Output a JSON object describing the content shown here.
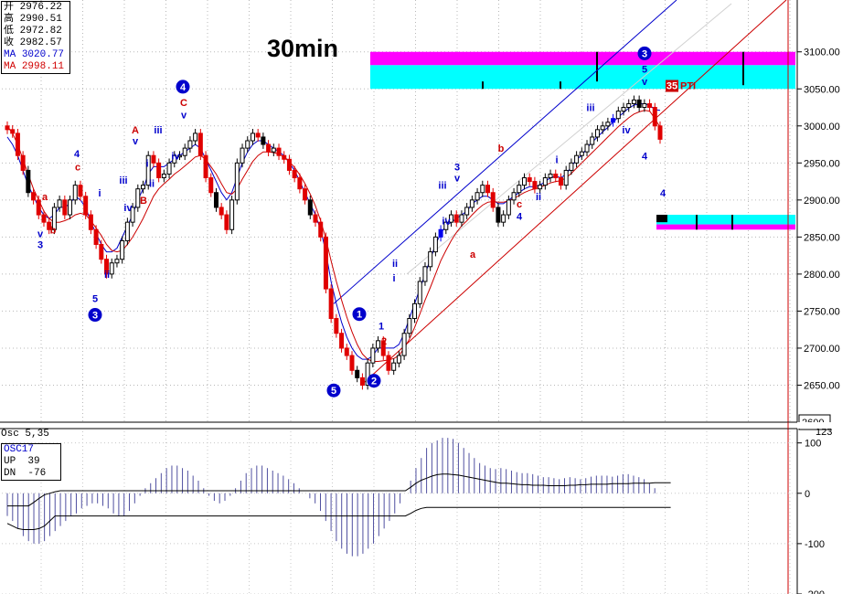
{
  "timeframe": "30min",
  "ohlc": {
    "open_label": "开",
    "open": "2976.22",
    "high_label": "高",
    "high": "2990.51",
    "low_label": "低",
    "low": "2972.82",
    "close_label": "收",
    "close": "2982.57",
    "ma1_label": "MA",
    "ma1": "3020.77",
    "ma2_label": "MA",
    "ma2": "2998.11"
  },
  "oscillator": {
    "header": "Osc 5,35",
    "name": "OSC17",
    "up_label": "UP",
    "up": "39",
    "dn_label": "DN",
    "dn": "-76",
    "current_value": "123"
  },
  "colors": {
    "up_candle": "#ffffff",
    "down_candle": "#e00000",
    "blue_candle": "#0000ee",
    "black_candle": "#000000",
    "ma_fast": "#0000cc",
    "ma_slow": "#cc0000",
    "magenta_zone": "#ff00ff",
    "cyan_zone": "#00ffff",
    "wave_blue": "#0000cc",
    "wave_red": "#cc0000"
  },
  "chart_data": [
    {
      "type": "candlestick",
      "title": "30min",
      "ylim": [
        2600,
        3170
      ],
      "yticks": [
        3100,
        3050,
        3000,
        2950,
        2900,
        2850,
        2800,
        2750,
        2700,
        2650
      ],
      "ytick_labels": [
        "3100.00",
        "3050.00",
        "3000.00",
        "2950.00",
        "2900.00",
        "2850.00",
        "2800.00",
        "2750.00",
        "2700.00",
        "2650.00"
      ],
      "current_price_label": "2600",
      "grid": true,
      "close_series": [
        2995,
        2990,
        2960,
        2940,
        2910,
        2900,
        2880,
        2870,
        2860,
        2890,
        2900,
        2880,
        2900,
        2920,
        2905,
        2880,
        2860,
        2840,
        2820,
        2800,
        2815,
        2820,
        2845,
        2870,
        2890,
        2915,
        2920,
        2960,
        2950,
        2930,
        2935,
        2950,
        2960,
        2960,
        2970,
        2980,
        2990,
        2960,
        2930,
        2910,
        2890,
        2880,
        2860,
        2900,
        2950,
        2970,
        2980,
        2990,
        2985,
        2975,
        2965,
        2970,
        2960,
        2955,
        2940,
        2930,
        2915,
        2900,
        2880,
        2870,
        2850,
        2780,
        2740,
        2720,
        2700,
        2690,
        2670,
        2660,
        2650,
        2680,
        2700,
        2710,
        2690,
        2670,
        2680,
        2690,
        2720,
        2740,
        2760,
        2790,
        2810,
        2830,
        2850,
        2860,
        2870,
        2880,
        2870,
        2880,
        2890,
        2900,
        2910,
        2920,
        2910,
        2890,
        2870,
        2880,
        2900,
        2910,
        2920,
        2930,
        2925,
        2915,
        2920,
        2930,
        2935,
        2930,
        2920,
        2940,
        2950,
        2960,
        2965,
        2975,
        2985,
        2995,
        3000,
        3005,
        3010,
        3020,
        3025,
        3030,
        3035,
        3025,
        3030,
        3025,
        3000,
        2982
      ],
      "ma_fast_series": [
        2985,
        2975,
        2960,
        2940,
        2920,
        2905,
        2890,
        2880,
        2875,
        2880,
        2890,
        2890,
        2895,
        2905,
        2900,
        2890,
        2870,
        2855,
        2840,
        2830,
        2830,
        2835,
        2850,
        2865,
        2880,
        2900,
        2915,
        2935,
        2945,
        2945,
        2945,
        2950,
        2955,
        2960,
        2965,
        2970,
        2975,
        2970,
        2955,
        2940,
        2925,
        2910,
        2900,
        2910,
        2930,
        2950,
        2965,
        2975,
        2980,
        2980,
        2975,
        2970,
        2965,
        2960,
        2950,
        2940,
        2925,
        2910,
        2895,
        2880,
        2860,
        2830,
        2790,
        2760,
        2735,
        2715,
        2700,
        2690,
        2685,
        2685,
        2690,
        2700,
        2700,
        2700,
        2700,
        2705,
        2720,
        2740,
        2760,
        2780,
        2800,
        2820,
        2840,
        2855,
        2865,
        2870,
        2875,
        2880,
        2885,
        2895,
        2900,
        2905,
        2905,
        2900,
        2895,
        2895,
        2900,
        2905,
        2910,
        2915,
        2918,
        2918,
        2920,
        2925,
        2930,
        2932,
        2930,
        2935,
        2945,
        2955,
        2960,
        2970,
        2978,
        2985,
        2992,
        2998,
        3005,
        3012,
        3018,
        3024,
        3028,
        3030,
        3030,
        3028,
        3022,
        3021
      ],
      "ma_slow_series": [
        3000,
        2990,
        2975,
        2955,
        2935,
        2915,
        2900,
        2885,
        2875,
        2870,
        2870,
        2872,
        2875,
        2880,
        2882,
        2880,
        2872,
        2862,
        2852,
        2840,
        2832,
        2830,
        2832,
        2840,
        2850,
        2862,
        2875,
        2890,
        2905,
        2915,
        2922,
        2928,
        2935,
        2940,
        2946,
        2952,
        2958,
        2960,
        2955,
        2945,
        2935,
        2922,
        2910,
        2908,
        2915,
        2928,
        2940,
        2952,
        2960,
        2965,
        2965,
        2964,
        2962,
        2958,
        2952,
        2944,
        2934,
        2922,
        2908,
        2892,
        2872,
        2848,
        2818,
        2790,
        2765,
        2742,
        2722,
        2705,
        2692,
        2685,
        2682,
        2682,
        2683,
        2684,
        2686,
        2690,
        2700,
        2712,
        2728,
        2746,
        2765,
        2782,
        2800,
        2818,
        2832,
        2845,
        2856,
        2865,
        2872,
        2880,
        2887,
        2893,
        2897,
        2898,
        2897,
        2897,
        2899,
        2902,
        2906,
        2910,
        2913,
        2915,
        2917,
        2920,
        2923,
        2925,
        2926,
        2930,
        2936,
        2943,
        2950,
        2957,
        2964,
        2971,
        2978,
        2985,
        2992,
        2999,
        3005,
        3011,
        3016,
        3019,
        3021,
        3020,
        3010,
        2998
      ],
      "zones": [
        {
          "color": "magenta",
          "from": 3082,
          "to": 3100
        },
        {
          "color": "cyan",
          "from": 3050,
          "to": 3082
        },
        {
          "color": "cyan",
          "from": 2867,
          "to": 2880
        },
        {
          "color": "magenta",
          "from": 2860,
          "to": 2867
        }
      ],
      "wave_labels": [
        {
          "text": "v",
          "color": "blue",
          "price": 2850
        },
        {
          "text": "3",
          "color": "blue",
          "price": 2835
        },
        {
          "text": "a",
          "color": "red",
          "price": 2900
        },
        {
          "text": "b",
          "color": "red",
          "price": 2855
        },
        {
          "text": "4",
          "color": "blue",
          "price": 2958
        },
        {
          "text": "c",
          "color": "red",
          "price": 2940
        },
        {
          "text": "i",
          "color": "blue",
          "price": 2905
        },
        {
          "text": "ii",
          "color": "blue",
          "price": 2795
        },
        {
          "text": "5",
          "color": "blue",
          "price": 2762
        },
        {
          "text": "3",
          "color": "circled-blue",
          "price": 2740
        },
        {
          "text": "iii",
          "color": "blue",
          "price": 2922
        },
        {
          "text": "iv",
          "color": "blue",
          "price": 2885
        },
        {
          "text": "A",
          "color": "red",
          "price": 2990
        },
        {
          "text": "v",
          "color": "blue",
          "price": 2975
        },
        {
          "text": "B",
          "color": "red",
          "price": 2895
        },
        {
          "text": "i",
          "color": "blue",
          "price": 2945
        },
        {
          "text": "ii",
          "color": "blue",
          "price": 2918
        },
        {
          "text": "iii",
          "color": "blue",
          "price": 2990
        },
        {
          "text": "iv",
          "color": "blue",
          "price": 2955
        },
        {
          "text": "4",
          "color": "circled-blue",
          "price": 3048
        },
        {
          "text": "C",
          "color": "red",
          "price": 3027
        },
        {
          "text": "v",
          "color": "blue",
          "price": 3010
        },
        {
          "text": "5",
          "color": "circled-blue",
          "price": 2638
        },
        {
          "text": "1",
          "color": "circled-blue",
          "price": 2741
        },
        {
          "text": "2",
          "color": "circled-blue",
          "price": 2651
        },
        {
          "text": "1",
          "color": "blue",
          "price": 2725
        },
        {
          "text": "2",
          "color": "red",
          "price": 2705
        },
        {
          "text": "i",
          "color": "blue",
          "price": 2790
        },
        {
          "text": "ii",
          "color": "blue",
          "price": 2810
        },
        {
          "text": "iii",
          "color": "blue",
          "price": 2915
        },
        {
          "text": "iv",
          "color": "blue",
          "price": 2867
        },
        {
          "text": "3",
          "color": "blue",
          "price": 2940
        },
        {
          "text": "v",
          "color": "blue",
          "price": 2925
        },
        {
          "text": "a",
          "color": "red",
          "price": 2822
        },
        {
          "text": "b",
          "color": "red",
          "price": 2965
        },
        {
          "text": "c",
          "color": "red",
          "price": 2890
        },
        {
          "text": "4",
          "color": "blue",
          "price": 2873
        },
        {
          "text": "i",
          "color": "blue",
          "price": 2950
        },
        {
          "text": "ii",
          "color": "blue",
          "price": 2900
        },
        {
          "text": "iii",
          "color": "blue",
          "price": 3020
        },
        {
          "text": "iv",
          "color": "blue",
          "price": 2990
        },
        {
          "text": "3",
          "color": "circled-blue",
          "price": 3093
        },
        {
          "text": "5",
          "color": "blue",
          "price": 3072
        },
        {
          "text": "v",
          "color": "blue",
          "price": 3055
        },
        {
          "text": "4",
          "color": "blue",
          "price": 2955
        },
        {
          "text": "4",
          "color": "blue",
          "price": 2905
        }
      ],
      "tag_35": "35",
      "tag_pti": "PTI"
    },
    {
      "type": "bar",
      "title": "Osc 5,35",
      "ylim": [
        -200,
        123
      ],
      "yticks": [
        100,
        0,
        -100,
        -200
      ],
      "ytick_labels": [
        "100",
        "0",
        "-100",
        "-200"
      ],
      "values": [
        -45,
        -55,
        -70,
        -85,
        -95,
        -100,
        -100,
        -95,
        -85,
        -75,
        -65,
        -55,
        -45,
        -40,
        -30,
        -25,
        -20,
        -20,
        -25,
        -30,
        -40,
        -45,
        -45,
        -35,
        -20,
        -5,
        10,
        20,
        30,
        40,
        50,
        55,
        55,
        50,
        45,
        35,
        25,
        10,
        -5,
        -15,
        -20,
        -15,
        -5,
        10,
        25,
        40,
        50,
        55,
        55,
        50,
        45,
        40,
        35,
        28,
        20,
        10,
        0,
        -10,
        -20,
        -35,
        -55,
        -75,
        -95,
        -110,
        -120,
        -125,
        -125,
        -120,
        -110,
        -100,
        -85,
        -70,
        -55,
        -40,
        -20,
        0,
        25,
        50,
        70,
        90,
        100,
        105,
        110,
        110,
        108,
        100,
        90,
        80,
        70,
        60,
        55,
        50,
        48,
        50,
        48,
        45,
        42,
        40,
        40,
        38,
        35,
        32,
        32,
        30,
        28,
        30,
        32,
        30,
        28,
        30,
        33,
        35,
        35,
        35,
        33,
        35,
        38,
        38,
        35,
        32,
        28,
        20,
        10,
        0
      ],
      "signal_series": [
        {
          "name": "upper",
          "values": [
            -25,
            -25,
            -25,
            -25,
            -25,
            -18,
            -10,
            -3,
            0,
            3,
            5,
            5,
            5,
            5,
            5,
            5,
            5,
            5,
            5,
            5,
            5,
            5,
            5,
            5,
            5,
            5,
            5,
            5,
            5,
            5,
            5,
            5,
            5,
            5,
            5,
            5,
            5,
            5,
            5,
            5,
            5,
            5,
            5,
            5,
            5,
            5,
            5,
            5,
            5,
            5,
            5,
            5,
            5,
            5,
            5,
            5,
            5,
            5,
            5,
            5,
            5,
            5,
            5,
            5,
            5,
            5,
            5,
            5,
            5,
            5,
            5,
            5,
            5,
            5,
            5,
            5,
            12,
            20,
            26,
            30,
            34,
            37,
            38,
            38,
            37,
            36,
            34,
            32,
            30,
            28,
            26,
            24,
            22,
            20,
            20,
            19,
            18,
            17,
            17,
            16,
            16,
            16,
            15,
            15,
            15,
            15,
            16,
            16,
            17,
            17,
            18,
            18,
            18,
            18,
            19,
            19,
            19,
            19,
            20,
            20,
            20,
            20,
            21,
            21,
            21,
            21
          ]
        },
        {
          "name": "lower",
          "values": [
            -60,
            -65,
            -70,
            -72,
            -72,
            -72,
            -70,
            -65,
            -55,
            -45,
            -45,
            -45,
            -45,
            -45,
            -45,
            -45,
            -45,
            -45,
            -45,
            -45,
            -45,
            -45,
            -45,
            -45,
            -45,
            -45,
            -45,
            -45,
            -45,
            -45,
            -45,
            -45,
            -45,
            -45,
            -45,
            -45,
            -45,
            -45,
            -45,
            -45,
            -45,
            -45,
            -45,
            -45,
            -45,
            -45,
            -45,
            -45,
            -45,
            -45,
            -45,
            -45,
            -45,
            -45,
            -45,
            -45,
            -45,
            -45,
            -45,
            -45,
            -45,
            -45,
            -45,
            -45,
            -45,
            -45,
            -45,
            -45,
            -45,
            -45,
            -45,
            -45,
            -45,
            -45,
            -45,
            -45,
            -40,
            -34,
            -30,
            -28,
            -28,
            -28,
            -28,
            -28,
            -28,
            -28,
            -28,
            -28,
            -28,
            -28,
            -28,
            -28,
            -28,
            -28,
            -28,
            -28,
            -28,
            -28,
            -28,
            -28,
            -28,
            -28,
            -28,
            -28,
            -28,
            -28,
            -28,
            -28,
            -28,
            -28,
            -28,
            -28,
            -28,
            -28,
            -28,
            -28,
            -28,
            -28,
            -28,
            -28,
            -28,
            -28,
            -28,
            -28,
            -28,
            -28
          ]
        }
      ]
    }
  ]
}
